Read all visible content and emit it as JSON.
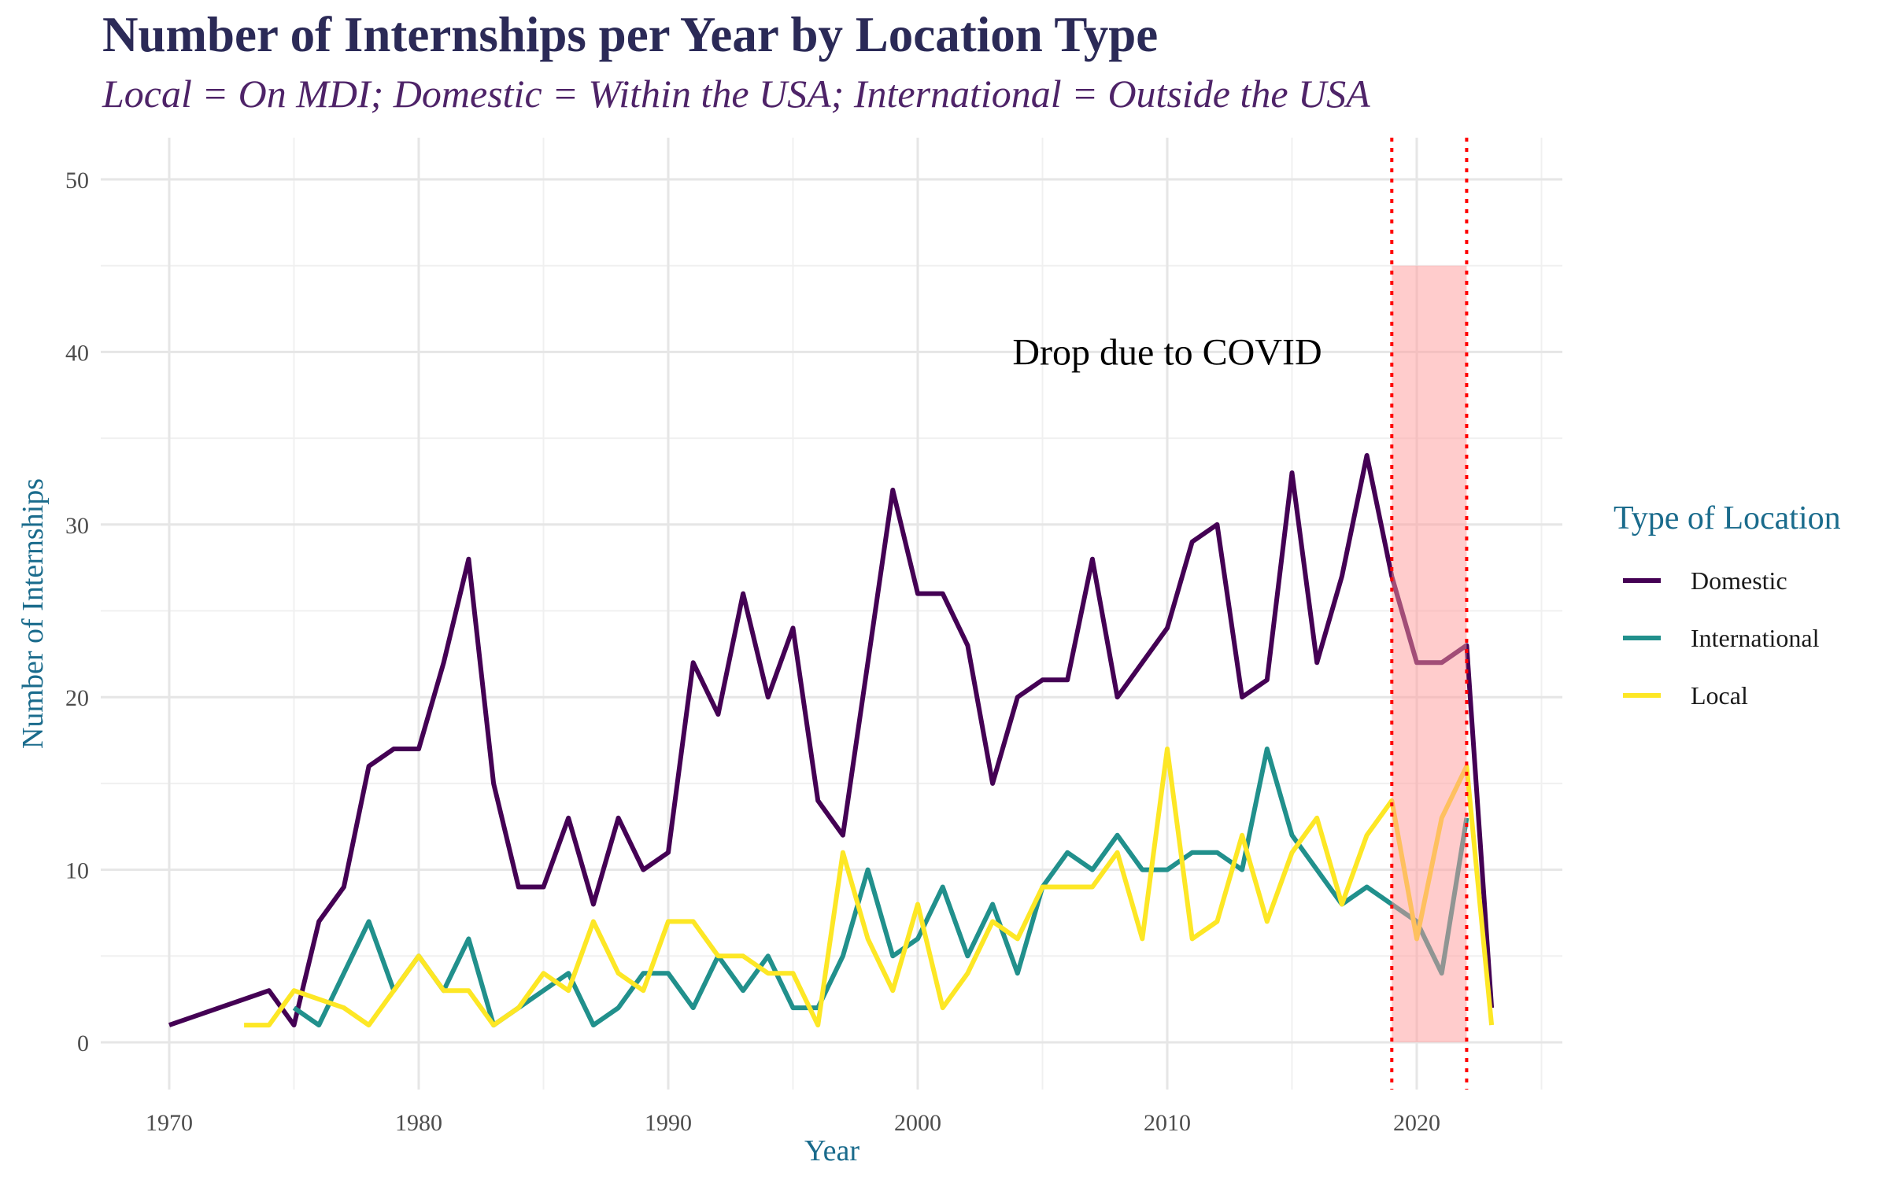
{
  "chart_data": {
    "type": "line",
    "title": "Number of Internships per Year by Location Type",
    "subtitle": "Local = On MDI; Domestic = Within the USA; International = Outside the USA",
    "xlabel": "Year",
    "ylabel": "Number of Internships",
    "xlim": [
      1970,
      2025
    ],
    "ylim": [
      0,
      50
    ],
    "x_ticks": [
      1970,
      1980,
      1990,
      2000,
      2010,
      2020
    ],
    "y_ticks": [
      0,
      10,
      20,
      30,
      40,
      50
    ],
    "grid": true,
    "legend": {
      "title": "Type of Location",
      "placement": "right"
    },
    "series": [
      {
        "name": "Domestic",
        "color": "#440154",
        "x": [
          1970,
          1974,
          1975,
          1976,
          1977,
          1978,
          1979,
          1980,
          1981,
          1982,
          1983,
          1984,
          1985,
          1986,
          1987,
          1988,
          1989,
          1990,
          1991,
          1992,
          1993,
          1994,
          1995,
          1996,
          1997,
          1998,
          1999,
          2000,
          2001,
          2002,
          2003,
          2004,
          2005,
          2006,
          2007,
          2008,
          2009,
          2010,
          2011,
          2012,
          2013,
          2014,
          2015,
          2016,
          2017,
          2018,
          2019,
          2020,
          2021,
          2022,
          2023
        ],
        "values": [
          1,
          3,
          1,
          7,
          9,
          16,
          17,
          17,
          22,
          28,
          15,
          9,
          9,
          13,
          8,
          13,
          10,
          11,
          22,
          19,
          26,
          20,
          24,
          14,
          12,
          22,
          32,
          26,
          26,
          23,
          15,
          20,
          21,
          21,
          28,
          20,
          22,
          24,
          29,
          30,
          20,
          21,
          33,
          22,
          27,
          34,
          27,
          22,
          22,
          23,
          2
        ]
      },
      {
        "name": "International",
        "color": "#21908c",
        "x": [
          1975,
          1976,
          1977,
          1978,
          1979,
          1980,
          1981,
          1982,
          1983,
          1984,
          1985,
          1986,
          1987,
          1988,
          1989,
          1990,
          1991,
          1992,
          1993,
          1994,
          1995,
          1996,
          1997,
          1998,
          1999,
          2000,
          2001,
          2002,
          2003,
          2004,
          2005,
          2006,
          2007,
          2008,
          2009,
          2010,
          2011,
          2012,
          2013,
          2014,
          2015,
          2016,
          2017,
          2018,
          2019,
          2020,
          2021,
          2022
        ],
        "values": [
          2,
          1,
          4,
          7,
          3,
          5,
          3,
          6,
          1,
          2,
          3,
          4,
          1,
          2,
          4,
          4,
          2,
          5,
          3,
          5,
          2,
          2,
          5,
          10,
          5,
          6,
          9,
          5,
          8,
          4,
          9,
          11,
          10,
          12,
          10,
          10,
          11,
          11,
          10,
          17,
          12,
          10,
          8,
          9,
          8,
          7,
          4,
          13
        ]
      },
      {
        "name": "Local",
        "color": "#fde725",
        "x": [
          1973,
          1974,
          1975,
          1976,
          1977,
          1978,
          1979,
          1980,
          1981,
          1982,
          1983,
          1984,
          1985,
          1986,
          1987,
          1988,
          1989,
          1990,
          1991,
          1992,
          1993,
          1994,
          1995,
          1996,
          1997,
          1998,
          1999,
          2000,
          2001,
          2002,
          2003,
          2004,
          2005,
          2006,
          2007,
          2008,
          2009,
          2010,
          2011,
          2012,
          2013,
          2014,
          2015,
          2016,
          2017,
          2018,
          2019,
          2020,
          2021,
          2022,
          2023
        ],
        "values": [
          1,
          1,
          3,
          2.5,
          2,
          1,
          3,
          5,
          3,
          3,
          1,
          2,
          4,
          3,
          7,
          4,
          3,
          7,
          7,
          5,
          5,
          4,
          4,
          1,
          11,
          6,
          3,
          8,
          2,
          4,
          7,
          6,
          9,
          9,
          9,
          11,
          6,
          17,
          6,
          7,
          12,
          7,
          11,
          13,
          8,
          12,
          14,
          6,
          13,
          16,
          1
        ]
      }
    ],
    "covid_band": {
      "x_start": 2019,
      "x_end": 2022,
      "y_top": 45,
      "color": "#ff9999",
      "line_color": "#ff0000"
    },
    "annotation": {
      "text": "Drop due to COVID",
      "x": 2010,
      "y": 40
    }
  }
}
